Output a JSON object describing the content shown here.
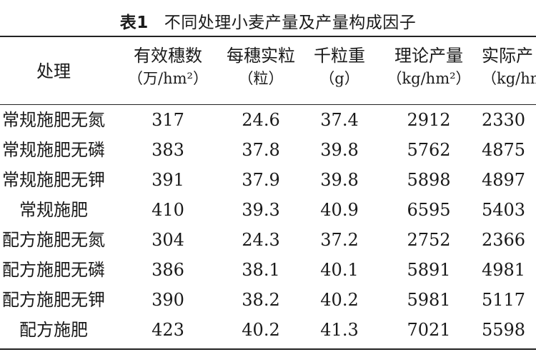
{
  "caption": {
    "label": "表1",
    "title": "不同处理小麦产量及产量构成因子"
  },
  "header": {
    "treatment": "处理",
    "columns": [
      {
        "name": "有效穗数",
        "unit": "（万/hm²）"
      },
      {
        "name": "每穗实粒",
        "unit": "（粒）"
      },
      {
        "name": "千粒重",
        "unit": "（g）"
      },
      {
        "name": "理论产量",
        "unit": "（kg/hm²）"
      },
      {
        "name": "实际产",
        "unit": "（kg/hm"
      }
    ]
  },
  "rows": [
    {
      "treatment": "常规施肥无氮",
      "values": [
        "317",
        "24.6",
        "37.4",
        "2912",
        "2330"
      ]
    },
    {
      "treatment": "常规施肥无磷",
      "values": [
        "383",
        "37.8",
        "39.8",
        "5762",
        "4875"
      ]
    },
    {
      "treatment": "常规施肥无钾",
      "values": [
        "391",
        "37.9",
        "39.8",
        "5898",
        "4897"
      ]
    },
    {
      "treatment": "常规施肥",
      "values": [
        "410",
        "39.3",
        "40.9",
        "6595",
        "5403"
      ]
    },
    {
      "treatment": "配方施肥无氮",
      "values": [
        "304",
        "24.3",
        "37.2",
        "2752",
        "2366"
      ]
    },
    {
      "treatment": "配方施肥无磷",
      "values": [
        "386",
        "38.1",
        "40.1",
        "5891",
        "4981"
      ]
    },
    {
      "treatment": "配方施肥无钾",
      "values": [
        "390",
        "38.2",
        "40.2",
        "5981",
        "5117"
      ]
    },
    {
      "treatment": "配方施肥",
      "values": [
        "423",
        "40.2",
        "41.3",
        "7021",
        "5598"
      ]
    }
  ]
}
